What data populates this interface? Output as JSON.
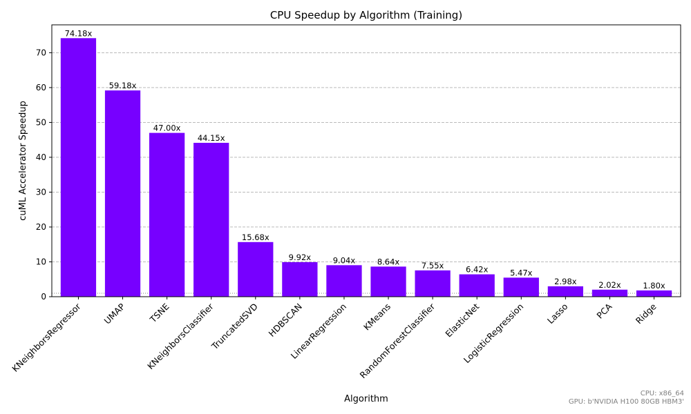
{
  "chart_data": {
    "type": "bar",
    "title": "CPU Speedup by Algorithm (Training)",
    "xlabel": "Algorithm",
    "ylabel": "cuML Accelerator Speedup",
    "ylim": [
      0,
      78
    ],
    "yticks": [
      0,
      10,
      20,
      30,
      40,
      50,
      60,
      70
    ],
    "grid": true,
    "baseline": 1,
    "bar_color": "#7700ff",
    "categories": [
      "KNeighborsRegressor",
      "UMAP",
      "TSNE",
      "KNeighborsClassifier",
      "TruncatedSVD",
      "HDBSCAN",
      "LinearRegression",
      "KMeans",
      "RandomForestClassifier",
      "ElasticNet",
      "LogisticRegression",
      "Lasso",
      "PCA",
      "Ridge"
    ],
    "values": [
      74.18,
      59.18,
      47.0,
      44.15,
      15.68,
      9.92,
      9.04,
      8.64,
      7.55,
      6.42,
      5.47,
      2.98,
      2.02,
      1.8
    ],
    "labels": [
      "74.18x",
      "59.18x",
      "47.00x",
      "44.15x",
      "15.68x",
      "9.92x",
      "9.04x",
      "8.64x",
      "7.55x",
      "6.42x",
      "5.47x",
      "2.98x",
      "2.02x",
      "1.80x"
    ]
  },
  "footer": {
    "cpu": "CPU: x86_64",
    "gpu": "GPU: b'NVIDIA H100 80GB HBM3'"
  }
}
